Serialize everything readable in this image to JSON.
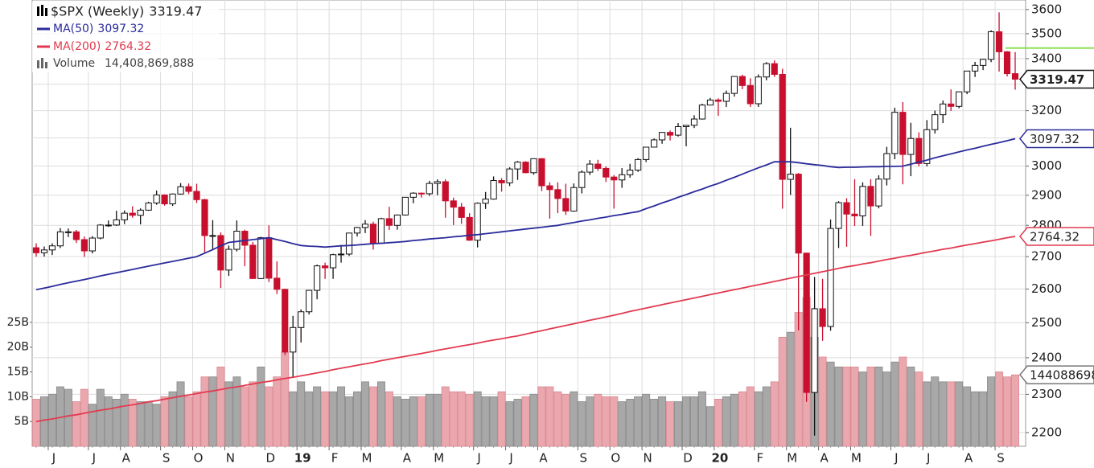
{
  "chart_data": {
    "type": "candlestick",
    "title": "$SPX (Weekly)",
    "categories": [
      null,
      null,
      "J",
      null,
      null,
      null,
      null,
      "J",
      null,
      null,
      null,
      "A",
      null,
      null,
      null,
      null,
      "S",
      null,
      null,
      null,
      "O",
      null,
      null,
      null,
      "N",
      null,
      null,
      null,
      null,
      "D",
      null,
      null,
      null,
      "19",
      null,
      null,
      null,
      "F",
      null,
      null,
      null,
      "M",
      null,
      null,
      null,
      null,
      "A",
      null,
      null,
      null,
      "M",
      null,
      null,
      null,
      null,
      "J",
      null,
      null,
      null,
      "J",
      null,
      null,
      null,
      "A",
      null,
      null,
      null,
      null,
      "S",
      null,
      null,
      null,
      "O",
      null,
      null,
      null,
      "N",
      null,
      null,
      null,
      null,
      "D",
      null,
      null,
      null,
      "20",
      null,
      null,
      null,
      null,
      "F",
      null,
      null,
      null,
      "M",
      null,
      null,
      null,
      "A",
      null,
      null,
      null,
      "M",
      null,
      null,
      null,
      null,
      "J",
      null,
      null,
      null,
      "J",
      null,
      null,
      null,
      null,
      "A",
      null,
      null,
      null,
      "S",
      null,
      null
    ],
    "open": [
      2728,
      2712,
      2721,
      2734,
      2779,
      2779,
      2754,
      2718,
      2759,
      2801,
      2801,
      2818,
      2840,
      2833,
      2850,
      2874,
      2901,
      2871,
      2904,
      2929,
      2913,
      2885,
      2767,
      2767,
      2658,
      2723,
      2781,
      2736,
      2632,
      2760,
      2633,
      2599,
      2416,
      2486,
      2532,
      2596,
      2671,
      2665,
      2706,
      2708,
      2775,
      2793,
      2804,
      2743,
      2822,
      2800,
      2834,
      2893,
      2907,
      2905,
      2940,
      2946,
      2881,
      2860,
      2826,
      2752,
      2873,
      2887,
      2950,
      2942,
      2990,
      3014,
      2977,
      3026,
      2932,
      2919,
      2889,
      2847,
      2926,
      2979,
      3007,
      2992,
      2962,
      2952,
      2970,
      2986,
      3023,
      3067,
      3093,
      3120,
      3110,
      3141,
      3146,
      3169,
      3221,
      3240,
      3235,
      3265,
      3330,
      3295,
      3226,
      3328,
      3380,
      3338,
      2954,
      2972,
      2711,
      2305,
      2541,
      2489,
      2790,
      2875,
      2837,
      2831,
      2930,
      2864,
      2955,
      3044,
      3194,
      3041,
      3098,
      3009,
      3130,
      3185,
      3225,
      3216,
      3271,
      3351,
      3373,
      3397,
      3508,
      3427,
      3341
    ],
    "high": [
      2742,
      2732,
      2742,
      2791,
      2790,
      2785,
      2764,
      2765,
      2804,
      2816,
      2848,
      2849,
      2863,
      2856,
      2878,
      2916,
      2903,
      2906,
      2941,
      2940,
      2939,
      2888,
      2817,
      2777,
      2735,
      2816,
      2786,
      2746,
      2763,
      2800,
      2685,
      2601,
      2520,
      2539,
      2597,
      2675,
      2681,
      2709,
      2737,
      2776,
      2795,
      2817,
      2812,
      2825,
      2861,
      2836,
      2894,
      2910,
      2909,
      2949,
      2954,
      2954,
      2892,
      2874,
      2840,
      2876,
      2911,
      2964,
      2958,
      2996,
      3018,
      3017,
      3027,
      3028,
      2944,
      2944,
      2939,
      2940,
      2985,
      3021,
      3022,
      2999,
      2969,
      2993,
      3008,
      3028,
      3067,
      3098,
      3121,
      3127,
      3154,
      3147,
      3183,
      3226,
      3248,
      3246,
      3276,
      3330,
      3337,
      3323,
      3338,
      3386,
      3393,
      3360,
      3137,
      2976,
      2712,
      2637,
      2631,
      2819,
      2880,
      2890,
      2955,
      2944,
      2955,
      2968,
      3068,
      3211,
      3232,
      3155,
      3120,
      3165,
      3200,
      3238,
      3280,
      3272,
      3352,
      3387,
      3399,
      3514,
      3588,
      3430,
      3426
    ],
    "low": [
      2700,
      2700,
      2705,
      2727,
      2762,
      2743,
      2699,
      2710,
      2755,
      2795,
      2798,
      2804,
      2825,
      2803,
      2848,
      2868,
      2865,
      2864,
      2902,
      2904,
      2874,
      2710,
      2722,
      2603,
      2640,
      2716,
      2670,
      2631,
      2631,
      2621,
      2585,
      2408,
      2346,
      2443,
      2524,
      2569,
      2631,
      2631,
      2681,
      2702,
      2764,
      2775,
      2722,
      2741,
      2785,
      2786,
      2832,
      2873,
      2892,
      2898,
      2900,
      2825,
      2801,
      2805,
      2750,
      2729,
      2854,
      2885,
      2912,
      2931,
      2952,
      2975,
      2970,
      2914,
      2822,
      2840,
      2834,
      2845,
      2906,
      2969,
      2983,
      2945,
      2855,
      2925,
      2960,
      2980,
      3014,
      3066,
      3079,
      3091,
      3105,
      3070,
      3136,
      3167,
      3220,
      3181,
      3214,
      3253,
      3281,
      3214,
      3214,
      3315,
      3328,
      2855,
      2901,
      2478,
      2280,
      2192,
      2448,
      2477,
      2727,
      2731,
      2798,
      2798,
      2766,
      2856,
      2933,
      3024,
      2937,
      2965,
      2999,
      2999,
      3116,
      3154,
      3199,
      3209,
      3262,
      3328,
      3355,
      3386,
      3349,
      3330,
      3279
    ],
    "close": [
      2712,
      2721,
      2734,
      2779,
      2779,
      2754,
      2718,
      2759,
      2801,
      2801,
      2818,
      2840,
      2833,
      2850,
      2874,
      2901,
      2871,
      2904,
      2929,
      2913,
      2885,
      2767,
      2767,
      2658,
      2723,
      2781,
      2736,
      2632,
      2760,
      2633,
      2599,
      2416,
      2486,
      2532,
      2596,
      2671,
      2665,
      2706,
      2708,
      2775,
      2793,
      2804,
      2743,
      2822,
      2800,
      2834,
      2893,
      2907,
      2905,
      2940,
      2946,
      2881,
      2860,
      2826,
      2752,
      2873,
      2887,
      2950,
      2942,
      2990,
      3014,
      2977,
      3026,
      2932,
      2919,
      2889,
      2847,
      2926,
      2979,
      3007,
      2992,
      2962,
      2952,
      2970,
      2986,
      3023,
      3067,
      3093,
      3120,
      3110,
      3141,
      3146,
      3169,
      3221,
      3240,
      3235,
      3265,
      3330,
      3295,
      3226,
      3328,
      3380,
      3338,
      2954,
      2972,
      2711,
      2305,
      2541,
      2489,
      2790,
      2875,
      2837,
      2831,
      2930,
      2864,
      2955,
      3044,
      3194,
      3041,
      3098,
      3009,
      3130,
      3185,
      3225,
      3216,
      3271,
      3351,
      3373,
      3397,
      3508,
      3427,
      3341,
      3319.47
    ],
    "up_color": "#ffffff",
    "down_color": "#c8102e",
    "ylim": [
      2165,
      3640
    ],
    "yticks": [
      2200,
      2300,
      2400,
      2500,
      2600,
      2700,
      2800,
      2900,
      3000,
      3100,
      3200,
      3300,
      3400,
      3500,
      3600
    ],
    "log_scale": true,
    "grid": true,
    "marker_level": 3442,
    "marker_color": "#8ee05a",
    "overlays": [
      {
        "name": "MA(50)",
        "color": "#2b2b9c",
        "values": [
          2598,
          2603,
          2608,
          2614,
          2619,
          2624,
          2629,
          2634,
          2640,
          2645,
          2650,
          2655,
          2660,
          2665,
          2670,
          2675,
          2680,
          2685,
          2690,
          2695,
          2700,
          2711,
          2722,
          2734,
          2745,
          2748,
          2751,
          2754,
          2757,
          2760,
          2754,
          2748,
          2741,
          2735,
          2733,
          2732,
          2730,
          2732,
          2734,
          2735,
          2737,
          2739,
          2741,
          2742,
          2744,
          2746,
          2748,
          2751,
          2753,
          2756,
          2758,
          2760,
          2763,
          2765,
          2768,
          2770,
          2773,
          2776,
          2779,
          2782,
          2785,
          2788,
          2791,
          2794,
          2797,
          2800,
          2805,
          2809,
          2814,
          2818,
          2823,
          2827,
          2832,
          2836,
          2841,
          2845,
          2855,
          2864,
          2874,
          2883,
          2893,
          2902,
          2912,
          2921,
          2931,
          2940,
          2951,
          2961,
          2972,
          2983,
          2994,
          3004,
          3015,
          3015,
          3015,
          3012,
          3008,
          3005,
          3002,
          2998,
          2995,
          2996,
          2996,
          2997,
          2998,
          2998,
          2999,
          2999,
          3000,
          3007,
          3014,
          3021,
          3029,
          3036,
          3043,
          3050,
          3057,
          3063,
          3070,
          3077,
          3083,
          3090,
          3097.32
        ]
      },
      {
        "name": "MA(200)",
        "color": "#e23a50",
        "values": [
          2228,
          2232,
          2235,
          2239,
          2243,
          2246,
          2250,
          2254,
          2258,
          2261,
          2265,
          2269,
          2272,
          2276,
          2280,
          2283,
          2287,
          2291,
          2295,
          2298,
          2302,
          2306,
          2309,
          2313,
          2317,
          2320,
          2324,
          2328,
          2332,
          2335,
          2339,
          2343,
          2346,
          2350,
          2354,
          2358,
          2362,
          2367,
          2371,
          2375,
          2379,
          2383,
          2387,
          2392,
          2396,
          2400,
          2404,
          2408,
          2412,
          2416,
          2421,
          2425,
          2429,
          2433,
          2437,
          2441,
          2446,
          2450,
          2454,
          2458,
          2462,
          2467,
          2472,
          2477,
          2482,
          2487,
          2492,
          2497,
          2502,
          2507,
          2512,
          2517,
          2522,
          2527,
          2533,
          2538,
          2543,
          2548,
          2553,
          2558,
          2563,
          2568,
          2573,
          2578,
          2583,
          2588,
          2593,
          2598,
          2603,
          2608,
          2613,
          2618,
          2623,
          2628,
          2633,
          2638,
          2643,
          2648,
          2653,
          2658,
          2663,
          2668,
          2672,
          2677,
          2681,
          2686,
          2691,
          2695,
          2700,
          2704,
          2709,
          2714,
          2718,
          2723,
          2727,
          2732,
          2737,
          2741,
          2746,
          2750,
          2755,
          2760,
          2764.32
        ]
      }
    ],
    "volume": {
      "name": "Volume",
      "up_color": "#a8a8a8",
      "down_color": "#eba7ae",
      "ylim": [
        0,
        90000000000
      ],
      "yticks": [
        {
          "value": 5000000000,
          "label": "5B"
        },
        {
          "value": 10000000000,
          "label": "10B"
        },
        {
          "value": 15000000000,
          "label": "15B"
        },
        {
          "value": 20000000000,
          "label": "20B"
        },
        {
          "value": 25000000000,
          "label": "25B"
        }
      ],
      "values": [
        9500000000.0,
        10000000000.0,
        10500000000.0,
        12000000000.0,
        11500000000.0,
        9000000000.0,
        11500000000.0,
        8500000000.0,
        11500000000.0,
        10000000000.0,
        9500000000.0,
        10500000000.0,
        9500000000.0,
        9000000000.0,
        9000000000.0,
        8500000000.0,
        10000000000.0,
        11000000000.0,
        13000000000.0,
        10000000000.0,
        11000000000.0,
        14000000000.0,
        14000000000.0,
        16000000000.0,
        13000000000.0,
        14000000000.0,
        12000000000.0,
        13000000000.0,
        16000000000.0,
        12000000000.0,
        14000000000.0,
        19000000000.0,
        11000000000.0,
        13000000000.0,
        11000000000.0,
        12000000000.0,
        11000000000.0,
        11000000000.0,
        12000000000.0,
        10000000000.0,
        11000000000.0,
        13000000000.0,
        12000000000.0,
        13000000000.0,
        11000000000.0,
        10000000000.0,
        9500000000.0,
        10000000000.0,
        10000000000.0,
        10500000000.0,
        10500000000.0,
        12000000000.0,
        11000000000.0,
        11000000000.0,
        10500000000.0,
        11000000000.0,
        10000000000.0,
        10000000000.0,
        11000000000.0,
        9000000000.0,
        9500000000.0,
        10000000000.0,
        10500000000.0,
        12000000000.0,
        12000000000.0,
        11000000000.0,
        10500000000.0,
        11000000000.0,
        9000000000.0,
        10000000000.0,
        10500000000.0,
        10000000000.0,
        10000000000.0,
        9000000000.0,
        9500000000.0,
        10000000000.0,
        10500000000.0,
        9500000000.0,
        10000000000.0,
        9000000000.0,
        9000000000.0,
        10000000000.0,
        10000000000.0,
        11000000000.0,
        8000000000.0,
        9500000000.0,
        10000000000.0,
        10500000000.0,
        11000000000.0,
        12000000000.0,
        11000000000.0,
        12000000000.0,
        13000000000.0,
        22000000000.0,
        23000000000.0,
        27000000000.0,
        30000000000.0,
        22000000000.0,
        18000000000.0,
        17000000000.0,
        16000000000.0,
        16000000000.0,
        16000000000.0,
        15000000000.0,
        16000000000.0,
        16000000000.0,
        15000000000.0,
        17000000000.0,
        18000000000.0,
        16000000000.0,
        15000000000.0,
        13000000000.0,
        14000000000.0,
        13000000000.0,
        13000000000.0,
        13000000000.0,
        12000000000.0,
        11000000000.0,
        11000000000.0,
        14000000000.0,
        15000000000.0,
        14000000000.0,
        14408869888
      ],
      "last_value_label": "14,408,869,888"
    }
  }
}
